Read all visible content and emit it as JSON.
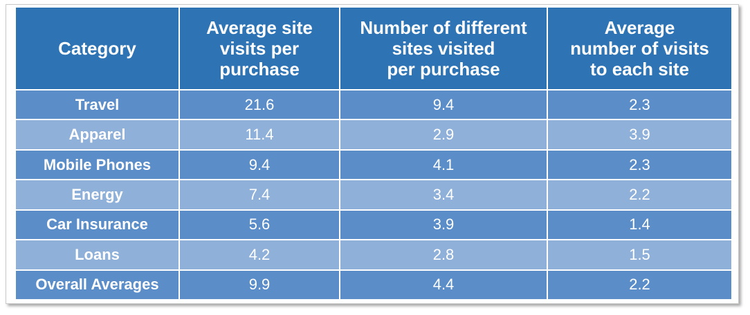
{
  "chart_data": {
    "type": "table",
    "columns": [
      "Category",
      "Average site visits per purchase",
      "Number of different sites visited per purchase",
      "Average number of visits to each site"
    ],
    "header_lines": [
      [
        "Category"
      ],
      [
        "Average site",
        "visits per",
        "purchase"
      ],
      [
        "Number of different",
        "sites visited",
        "per purchase"
      ],
      [
        "Average",
        "number of visits",
        "to each site"
      ]
    ],
    "rows": [
      {
        "category": "Travel",
        "values": [
          "21.6",
          "9.4",
          "2.3"
        ]
      },
      {
        "category": "Apparel",
        "values": [
          "11.4",
          "2.9",
          "3.9"
        ]
      },
      {
        "category": "Mobile Phones",
        "values": [
          "9.4",
          "4.1",
          "2.3"
        ]
      },
      {
        "category": "Energy",
        "values": [
          "7.4",
          "3.4",
          "2.2"
        ]
      },
      {
        "category": "Car Insurance",
        "values": [
          "5.6",
          "3.9",
          "1.4"
        ]
      },
      {
        "category": "Loans",
        "values": [
          "4.2",
          "2.8",
          "1.5"
        ]
      },
      {
        "category": "Overall Averages",
        "values": [
          "9.9",
          "4.4",
          "2.2"
        ]
      }
    ]
  },
  "colors": {
    "header_bg": "#2e74b5",
    "row_dark_bg": "#5b8ec9",
    "row_light_bg": "#8fb0d9",
    "text": "#ffffff"
  }
}
